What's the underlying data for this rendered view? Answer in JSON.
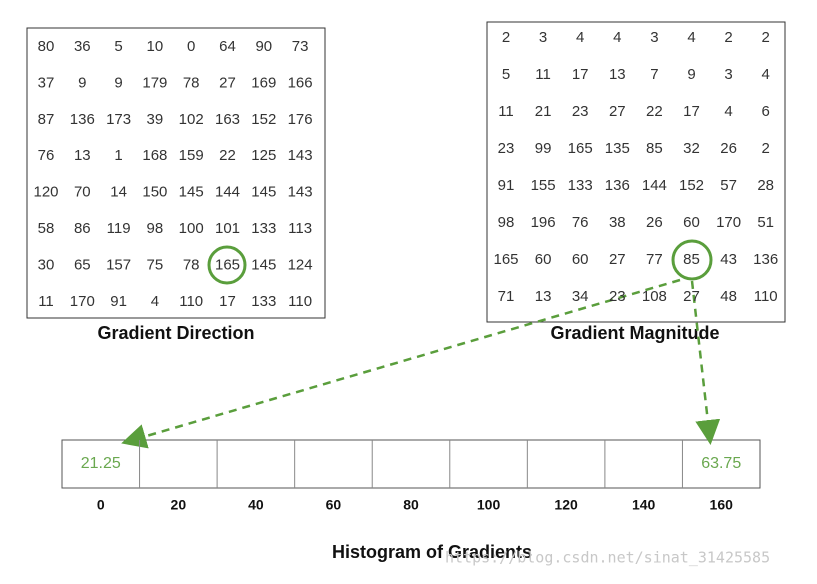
{
  "direction": {
    "caption": "Gradient Direction",
    "rows": [
      [
        80,
        36,
        5,
        10,
        0,
        64,
        90,
        73
      ],
      [
        37,
        9,
        9,
        179,
        78,
        27,
        169,
        166
      ],
      [
        87,
        136,
        173,
        39,
        102,
        163,
        152,
        176
      ],
      [
        76,
        13,
        1,
        168,
        159,
        22,
        125,
        143
      ],
      [
        120,
        70,
        14,
        150,
        145,
        144,
        145,
        143
      ],
      [
        58,
        86,
        119,
        98,
        100,
        101,
        133,
        113
      ],
      [
        30,
        65,
        157,
        75,
        78,
        165,
        145,
        124
      ],
      [
        11,
        170,
        91,
        4,
        110,
        17,
        133,
        110
      ]
    ]
  },
  "magnitude": {
    "caption": "Gradient Magnitude",
    "rows": [
      [
        2,
        3,
        4,
        4,
        3,
        4,
        2,
        2
      ],
      [
        5,
        11,
        17,
        13,
        7,
        9,
        3,
        4
      ],
      [
        11,
        21,
        23,
        27,
        22,
        17,
        4,
        6
      ],
      [
        23,
        99,
        165,
        135,
        85,
        32,
        26,
        2
      ],
      [
        91,
        155,
        133,
        136,
        144,
        152,
        57,
        28
      ],
      [
        98,
        196,
        76,
        38,
        26,
        60,
        170,
        51
      ],
      [
        165,
        60,
        60,
        27,
        77,
        85,
        43,
        136
      ],
      [
        71,
        13,
        34,
        23,
        108,
        27,
        48,
        110
      ]
    ]
  },
  "histogram": {
    "title": "Histogram of Gradients",
    "bins": [
      0,
      20,
      40,
      60,
      80,
      100,
      120,
      140,
      160
    ],
    "values": [
      21.25,
      null,
      null,
      null,
      null,
      null,
      null,
      null,
      63.75
    ]
  },
  "watermark": "https://blog.csdn.net/sinat_31425585"
}
